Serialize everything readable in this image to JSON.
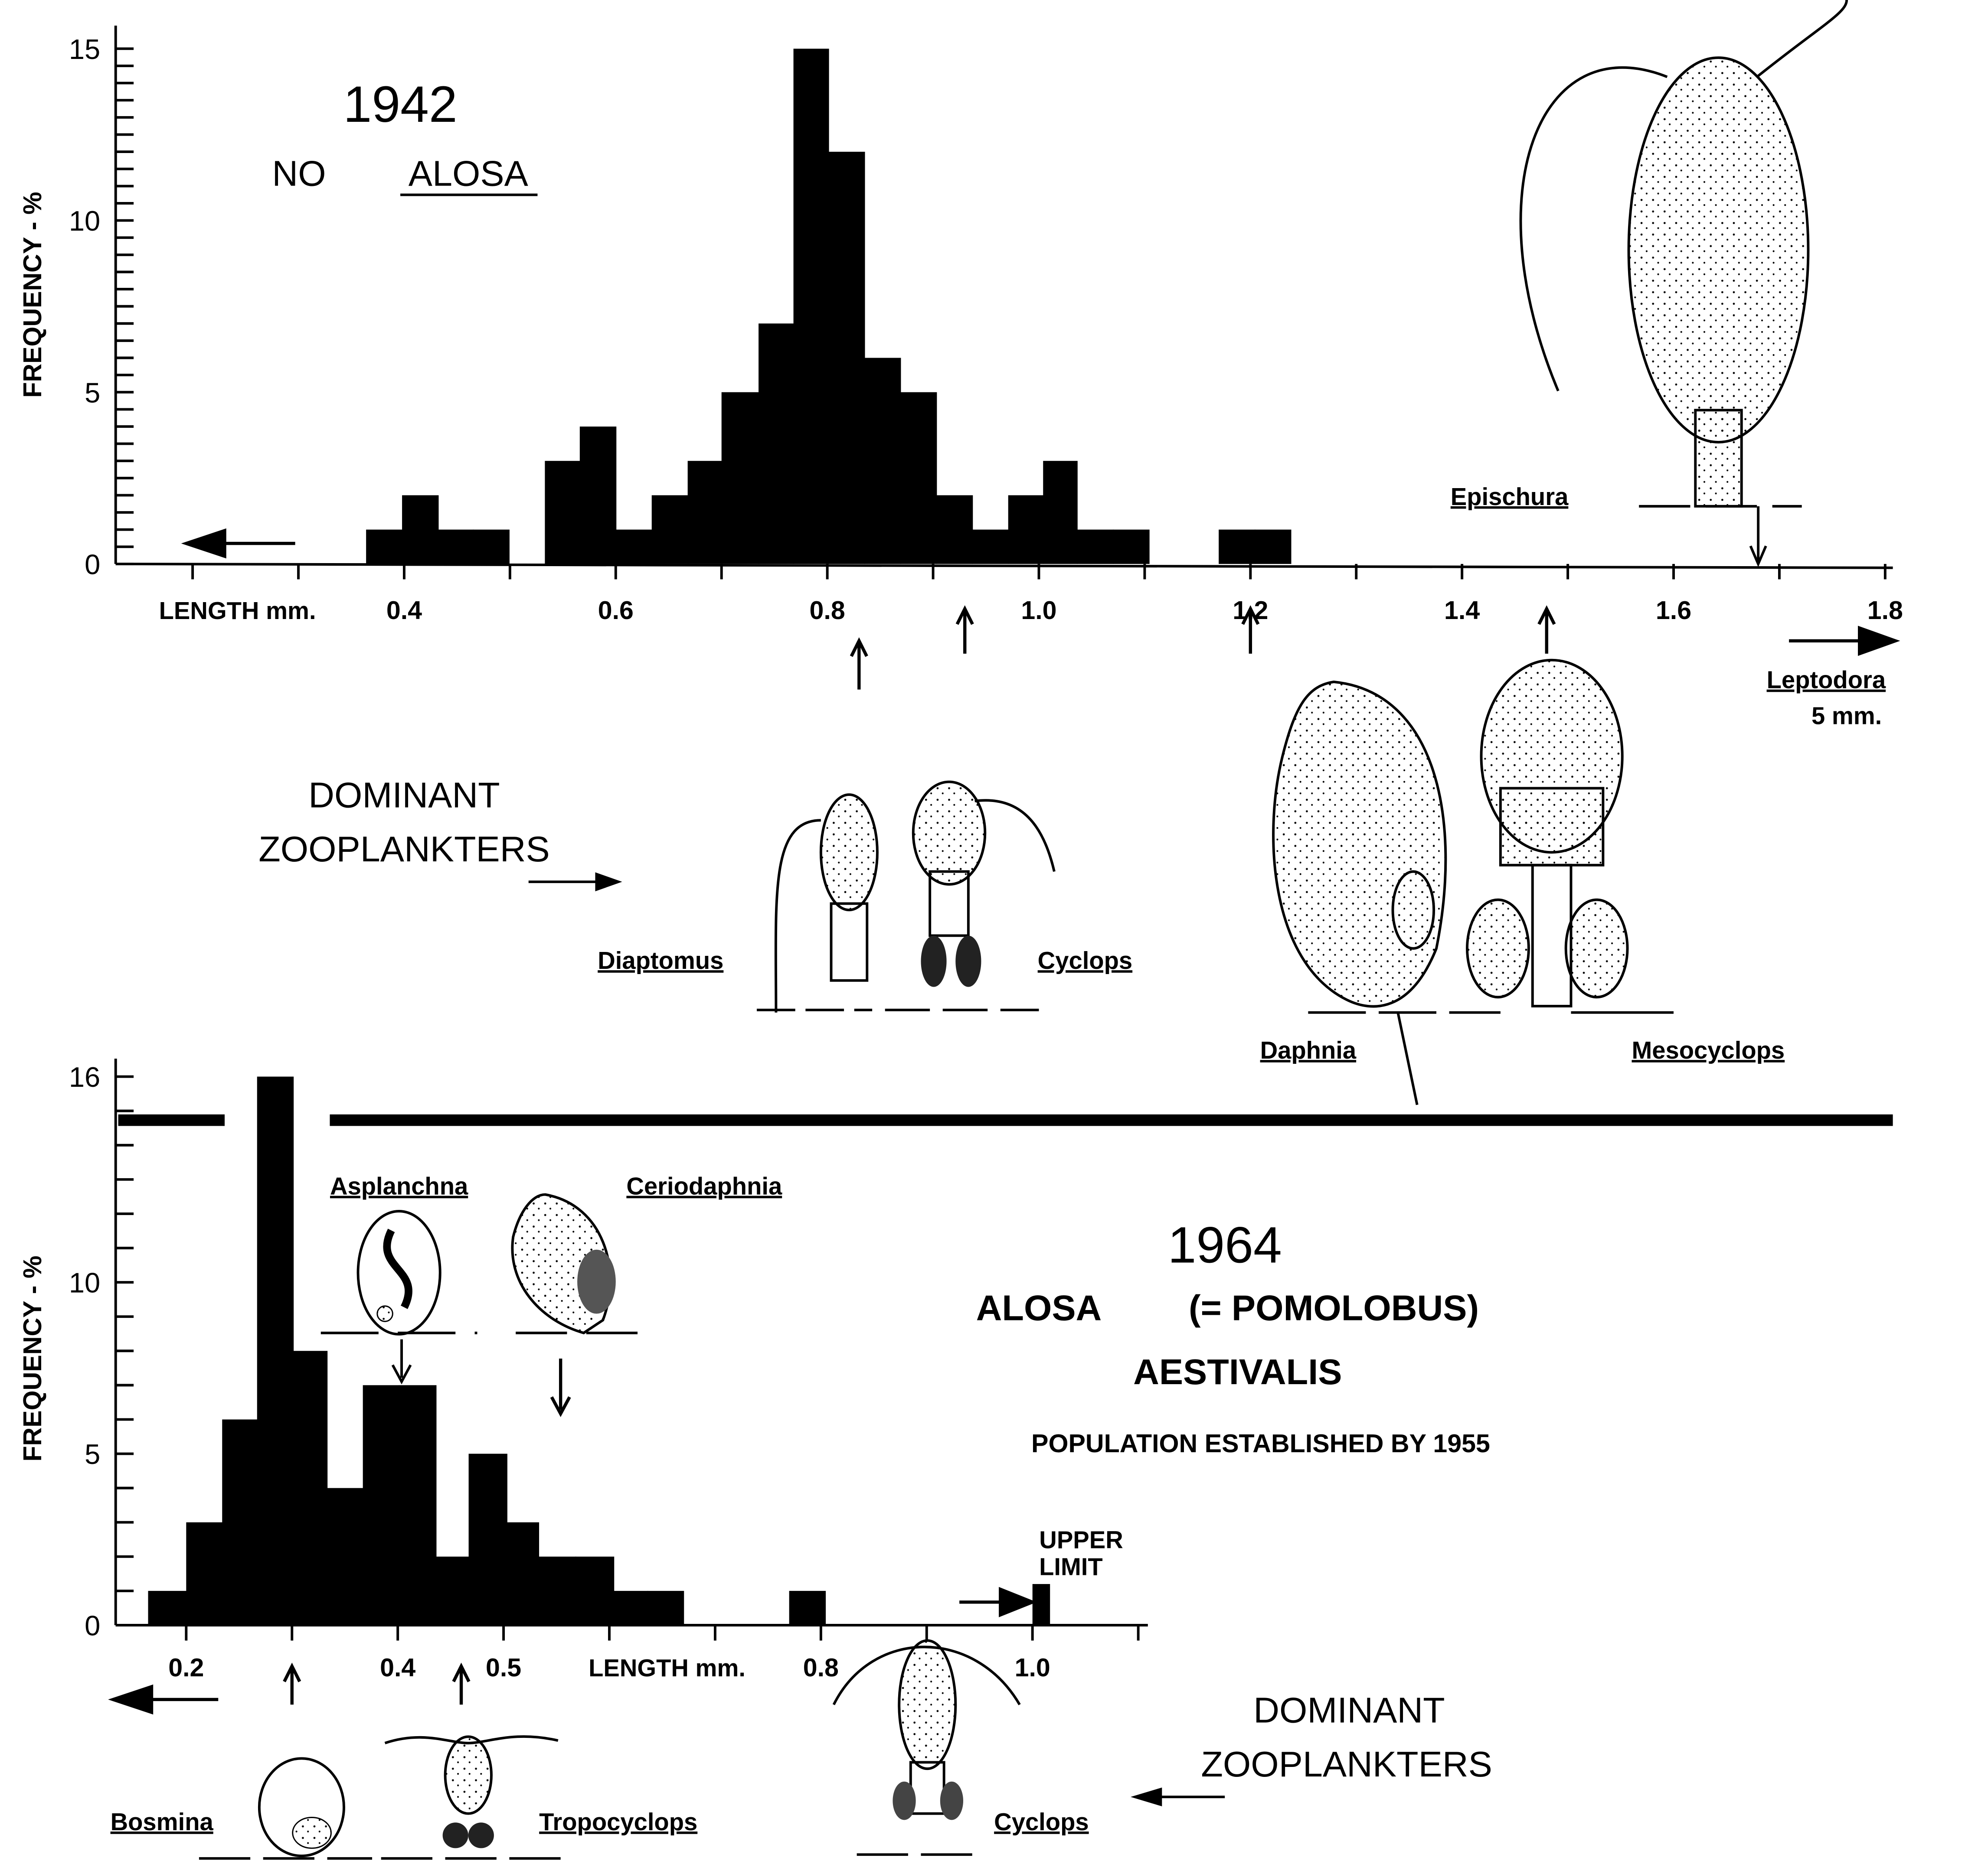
{
  "chart_data": [
    {
      "type": "bar",
      "title": "1942",
      "subtitle": [
        "NO",
        "ALOSA"
      ],
      "xlabel": "LENGTH mm.",
      "ylabel": "FREQUENCY - %",
      "xlim": [
        0.2,
        1.8
      ],
      "ylim": [
        0,
        15
      ],
      "x_ticks": [
        0.2,
        0.3,
        0.4,
        0.5,
        0.6,
        0.7,
        0.8,
        0.9,
        1.0,
        1.1,
        1.2,
        1.3,
        1.4,
        1.5,
        1.6,
        1.7,
        1.8
      ],
      "x_tick_labels": [
        {
          "x": 0.4,
          "label": "0.4"
        },
        {
          "x": 0.6,
          "label": "0.6"
        },
        {
          "x": 0.8,
          "label": "0.8"
        },
        {
          "x": 1.0,
          "label": "1.0"
        },
        {
          "x": 1.2,
          "label": "1.2"
        },
        {
          "x": 1.4,
          "label": "1.4"
        },
        {
          "x": 1.6,
          "label": "1.6"
        },
        {
          "x": 1.8,
          "label": "1.8"
        }
      ],
      "y_tick_labels": [
        {
          "y": 0,
          "label": "0"
        },
        {
          "y": 5,
          "label": "5"
        },
        {
          "y": 10,
          "label": "10"
        },
        {
          "y": 15,
          "label": "15"
        }
      ],
      "bins": [
        {
          "x0": 0.364,
          "x1": 0.398,
          "y": 1
        },
        {
          "x0": 0.398,
          "x1": 0.432,
          "y": 2
        },
        {
          "x0": 0.432,
          "x1": 0.465,
          "y": 1
        },
        {
          "x0": 0.465,
          "x1": 0.499,
          "y": 1
        },
        {
          "x0": 0.533,
          "x1": 0.566,
          "y": 3
        },
        {
          "x0": 0.566,
          "x1": 0.6,
          "y": 4
        },
        {
          "x0": 0.6,
          "x1": 0.634,
          "y": 1
        },
        {
          "x0": 0.634,
          "x1": 0.668,
          "y": 2
        },
        {
          "x0": 0.668,
          "x1": 0.7,
          "y": 3
        },
        {
          "x0": 0.7,
          "x1": 0.735,
          "y": 5
        },
        {
          "x0": 0.735,
          "x1": 0.768,
          "y": 7
        },
        {
          "x0": 0.768,
          "x1": 0.801,
          "y": 15
        },
        {
          "x0": 0.801,
          "x1": 0.835,
          "y": 12
        },
        {
          "x0": 0.835,
          "x1": 0.869,
          "y": 6
        },
        {
          "x0": 0.869,
          "x1": 0.903,
          "y": 5
        },
        {
          "x0": 0.903,
          "x1": 0.937,
          "y": 2
        },
        {
          "x0": 0.937,
          "x1": 0.971,
          "y": 1
        },
        {
          "x0": 0.971,
          "x1": 1.004,
          "y": 2
        },
        {
          "x0": 1.004,
          "x1": 1.036,
          "y": 3
        },
        {
          "x0": 1.036,
          "x1": 1.07,
          "y": 1
        },
        {
          "x0": 1.07,
          "x1": 1.104,
          "y": 1
        },
        {
          "x0": 1.17,
          "x1": 1.204,
          "y": 1
        },
        {
          "x0": 1.204,
          "x1": 1.238,
          "y": 1
        }
      ],
      "size_arrows_mm": [
        0.83,
        0.93,
        1.2,
        1.48,
        1.68
      ],
      "annotations": {
        "dominant": [
          "DOMINANT",
          "ZOOPLANKTERS"
        ],
        "organisms": [
          "Epischura",
          "Leptodora",
          "5 mm.",
          "Diaptomus",
          "Cyclops",
          "Daphnia",
          "Mesocyclops"
        ]
      }
    },
    {
      "type": "bar",
      "title": "1964",
      "subtitle": [
        "ALOSA",
        "(= POMOLOBUS)",
        "AESTIVALIS",
        "POPULATION ESTABLISHED BY 1955"
      ],
      "xlabel": "LENGTH mm.",
      "ylabel": "FREQUENCY - %",
      "xlim": [
        0.2,
        1.0
      ],
      "ylim": [
        0,
        16
      ],
      "x_ticks": [
        0.2,
        0.3,
        0.4,
        0.5,
        0.6,
        0.7,
        0.8,
        0.9,
        1.0,
        1.1
      ],
      "x_tick_labels": [
        {
          "x": 0.2,
          "label": "0.2"
        },
        {
          "x": 0.4,
          "label": "0.4"
        },
        {
          "x": 0.5,
          "label": "0.5"
        },
        {
          "x": 0.8,
          "label": "0.8"
        },
        {
          "x": 1.0,
          "label": "1.0"
        }
      ],
      "y_tick_labels": [
        {
          "y": 0,
          "label": "0"
        },
        {
          "y": 5,
          "label": "5"
        },
        {
          "y": 10,
          "label": "10"
        },
        {
          "y": 16,
          "label": "16"
        }
      ],
      "bins": [
        {
          "x0": 0.164,
          "x1": 0.2,
          "y": 1
        },
        {
          "x0": 0.2,
          "x1": 0.234,
          "y": 3
        },
        {
          "x0": 0.234,
          "x1": 0.267,
          "y": 6
        },
        {
          "x0": 0.267,
          "x1": 0.301,
          "y": 16
        },
        {
          "x0": 0.301,
          "x1": 0.333,
          "y": 8
        },
        {
          "x0": 0.333,
          "x1": 0.367,
          "y": 4
        },
        {
          "x0": 0.367,
          "x1": 0.401,
          "y": 7
        },
        {
          "x0": 0.401,
          "x1": 0.436,
          "y": 7
        },
        {
          "x0": 0.436,
          "x1": 0.467,
          "y": 2
        },
        {
          "x0": 0.467,
          "x1": 0.503,
          "y": 5
        },
        {
          "x0": 0.503,
          "x1": 0.533,
          "y": 3
        },
        {
          "x0": 0.533,
          "x1": 0.568,
          "y": 2
        },
        {
          "x0": 0.568,
          "x1": 0.604,
          "y": 2
        },
        {
          "x0": 0.604,
          "x1": 0.636,
          "y": 1
        },
        {
          "x0": 0.636,
          "x1": 0.67,
          "y": 1
        },
        {
          "x0": 0.77,
          "x1": 0.804,
          "y": 1
        },
        {
          "x0": 1.0,
          "x1": 1.016,
          "y": 1.2
        }
      ],
      "size_arrows_mm": [
        0.3,
        0.46
      ],
      "annotations": {
        "upper_limit": [
          "UPPER",
          "LIMIT"
        ],
        "dominant": [
          "DOMINANT",
          "ZOOPLANKTERS"
        ],
        "organisms": [
          "Asplanchna",
          "Ceriodaphnia",
          "Bosmina",
          "Tropocyclops",
          "Cyclops"
        ]
      }
    }
  ]
}
